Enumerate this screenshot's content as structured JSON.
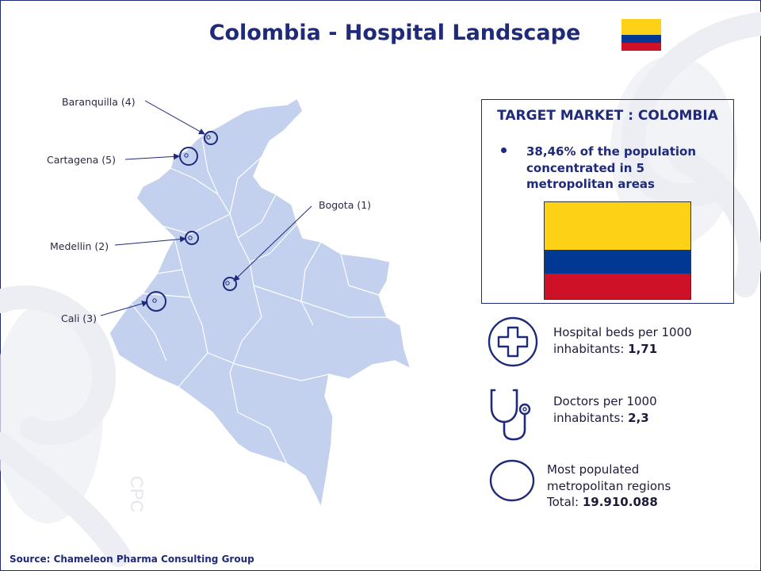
{
  "title": "Colombia - Hospital Landscape",
  "colors": {
    "flag_yellow": "#fcd116",
    "flag_blue": "#003893",
    "flag_red": "#ce1126",
    "map_fill": "#c3d0ee",
    "accent": "#1f2a7a"
  },
  "map": {
    "cities": [
      {
        "id": "baranquilla",
        "label": "Baranquilla (4)"
      },
      {
        "id": "cartagena",
        "label": "Cartagena (5)"
      },
      {
        "id": "bogota",
        "label": "Bogota (1)"
      },
      {
        "id": "medellin",
        "label": "Medellin (2)"
      },
      {
        "id": "cali",
        "label": "Cali (3)"
      }
    ]
  },
  "target_market": {
    "title": "TARGET MARKET : COLOMBIA",
    "bullet": "38,46% of the population concentrated in 5 metropolitan areas"
  },
  "stats": [
    {
      "icon": "medical-cross-icon",
      "text": "Hospital beds per 1000 inhabitants: ",
      "value": "1,71"
    },
    {
      "icon": "stethoscope-icon",
      "text": "Doctors per 1000 inhabitants: ",
      "value": "2,3"
    },
    {
      "icon": "circle-icon",
      "text": "Most populated metropolitan regions Total: ",
      "value": "19.910.088"
    }
  ],
  "source": "Source:  Chameleon Pharma Consulting Group"
}
